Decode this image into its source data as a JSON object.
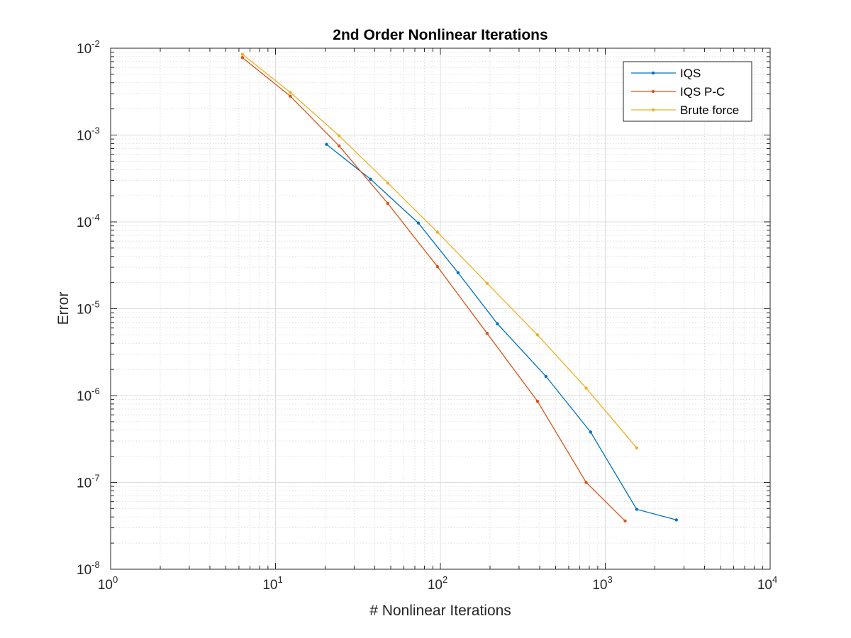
{
  "chart_data": {
    "type": "line",
    "title": "2nd Order Nonlinear Iterations",
    "xlabel": "# Nonlinear Iterations",
    "ylabel": "Error",
    "xscale": "log",
    "yscale": "log",
    "xlim": [
      1,
      10000
    ],
    "ylim": [
      1e-08,
      0.01
    ],
    "x_ticks": [
      {
        "value": 1,
        "base": "10",
        "exp": "0"
      },
      {
        "value": 10,
        "base": "10",
        "exp": "1"
      },
      {
        "value": 100,
        "base": "10",
        "exp": "2"
      },
      {
        "value": 1000,
        "base": "10",
        "exp": "3"
      },
      {
        "value": 10000,
        "base": "10",
        "exp": "4"
      }
    ],
    "y_ticks": [
      {
        "value": 1e-08,
        "base": "10",
        "exp": "-8"
      },
      {
        "value": 1e-07,
        "base": "10",
        "exp": "-7"
      },
      {
        "value": 1e-06,
        "base": "10",
        "exp": "-6"
      },
      {
        "value": 1e-05,
        "base": "10",
        "exp": "-5"
      },
      {
        "value": 0.0001,
        "base": "10",
        "exp": "-4"
      },
      {
        "value": 0.001,
        "base": "10",
        "exp": "-3"
      },
      {
        "value": 0.01,
        "base": "10",
        "exp": "-2"
      }
    ],
    "grid": true,
    "minor_grid": true,
    "legend_position": "top-right",
    "series": [
      {
        "name": "IQS",
        "color": "#0072BD",
        "x": [
          20.4,
          37.7,
          73.5,
          128,
          222,
          437,
          815,
          1550,
          2700
        ],
        "y": [
          0.00078,
          0.00031,
          9.7e-05,
          2.6e-05,
          6.7e-06,
          1.66e-06,
          3.8e-07,
          4.9e-08,
          3.7e-08
        ]
      },
      {
        "name": "IQS P-C",
        "color": "#D95319",
        "x": [
          6.3,
          12.3,
          24.3,
          48,
          96,
          192,
          388,
          765,
          1320
        ],
        "y": [
          0.0078,
          0.0028,
          0.00075,
          0.000163,
          3.05e-05,
          5.2e-06,
          8.6e-07,
          1e-07,
          3.6e-08
        ]
      },
      {
        "name": "Brute force",
        "color": "#EDB120",
        "x": [
          6.3,
          12.3,
          24.3,
          48,
          96,
          192,
          388,
          765,
          1550
        ],
        "y": [
          0.0085,
          0.0031,
          0.00098,
          0.00028,
          7.6e-05,
          1.96e-05,
          5e-06,
          1.22e-06,
          2.5e-07
        ]
      }
    ]
  }
}
